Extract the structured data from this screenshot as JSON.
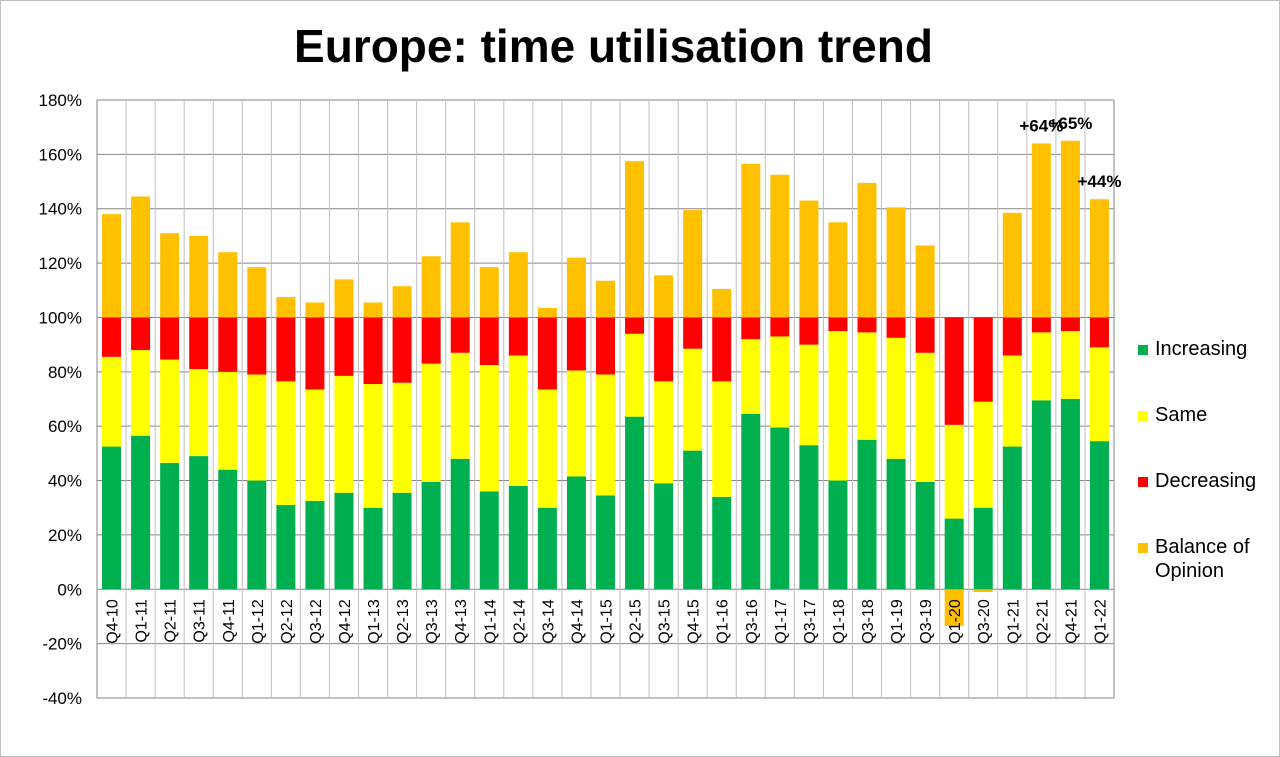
{
  "chart_data": {
    "type": "bar",
    "stacked": true,
    "title": "Europe: time utilisation trend",
    "xlabel": "",
    "ylabel": "",
    "ylim": [
      -40,
      180
    ],
    "y_ticks": [
      180,
      160,
      140,
      120,
      100,
      80,
      60,
      40,
      20,
      0,
      -20,
      -40
    ],
    "y_tick_format": "percent",
    "grid": true,
    "legend_position": "right",
    "categories": [
      "Q4-10",
      "Q1-11",
      "Q2-11",
      "Q3-11",
      "Q4-11",
      "Q1-12",
      "Q2-12",
      "Q3-12",
      "Q4-12",
      "Q1-13",
      "Q2-13",
      "Q3-13",
      "Q4-13",
      "Q1-14",
      "Q2-14",
      "Q3-14",
      "Q4-14",
      "Q1-15",
      "Q2-15",
      "Q3-15",
      "Q4-15",
      "Q1-16",
      "Q3-16",
      "Q1-17",
      "Q3-17",
      "Q1-18",
      "Q3-18",
      "Q1-19",
      "Q3-19",
      "Q1-20",
      "Q3-20",
      "Q1-21",
      "Q2-21",
      "Q4-21",
      "Q1-22"
    ],
    "series": [
      {
        "name": "Increasing",
        "color": "#00b050",
        "values": [
          52.5,
          56.5,
          46.5,
          49,
          44,
          40,
          31,
          32.5,
          35.5,
          30,
          35.5,
          39.5,
          48,
          36,
          38,
          30,
          41.5,
          34.5,
          63.5,
          39,
          51,
          34,
          64.5,
          59.5,
          53,
          40,
          55,
          48,
          39.5,
          26,
          30,
          52.5,
          69.5,
          70,
          54.5
        ]
      },
      {
        "name": "Same",
        "color": "#ffff00",
        "values": [
          33,
          31.5,
          38,
          32,
          36,
          39,
          45.5,
          41,
          43,
          45.5,
          40.5,
          43.5,
          39,
          46.5,
          48,
          43.5,
          39,
          44.5,
          30.5,
          37.5,
          37.5,
          42.5,
          27.5,
          33.5,
          37,
          55,
          39.5,
          44.5,
          47.5,
          34.5,
          39,
          33.5,
          25,
          25,
          34.5
        ]
      },
      {
        "name": "Decreasing",
        "color": "#ff0000",
        "values": [
          14.5,
          12,
          15.5,
          19,
          20,
          21,
          23.5,
          26.5,
          21.5,
          24.5,
          24,
          17,
          13,
          17.5,
          14,
          26.5,
          19.5,
          21,
          6,
          23.5,
          11.5,
          23.5,
          8,
          7,
          10,
          5,
          5.5,
          7.5,
          13,
          39.5,
          31,
          14,
          5.5,
          5,
          11
        ]
      },
      {
        "name": "Balance of Opinion",
        "color": "#ffc000",
        "values": [
          38,
          44.5,
          31,
          30,
          24,
          18.5,
          7.5,
          5.5,
          14,
          5.5,
          11.5,
          22.5,
          35,
          18.5,
          24,
          3.5,
          22,
          13.5,
          57.5,
          15.5,
          39.5,
          10.5,
          56.5,
          52.5,
          43,
          35,
          49.5,
          40.5,
          26.5,
          -13.5,
          -1,
          38.5,
          64,
          65,
          43.5
        ]
      }
    ],
    "annotations": [
      {
        "category": "Q2-21",
        "text": "+64%"
      },
      {
        "category": "Q4-21",
        "text": "+65%"
      },
      {
        "category": "Q1-22",
        "text": "+44%"
      }
    ]
  }
}
